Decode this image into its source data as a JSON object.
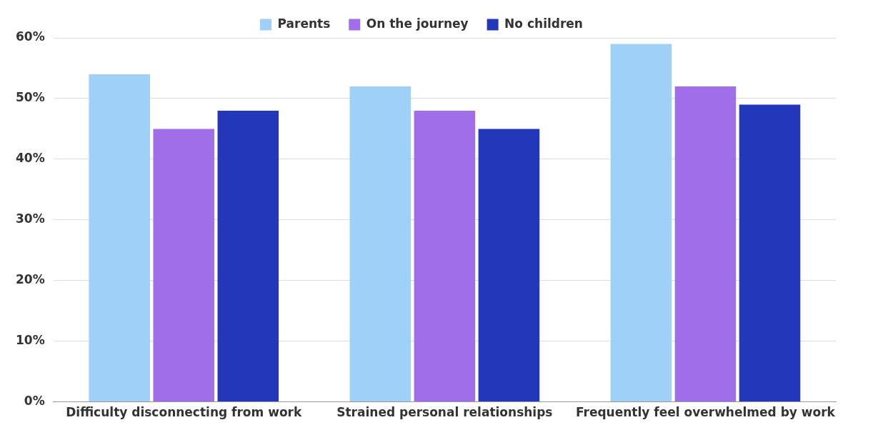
{
  "chart_data": {
    "type": "bar",
    "categories": [
      "Difficulty disconnecting from work",
      "Strained personal relationships",
      "Frequently feel overwhelmed by work"
    ],
    "series": [
      {
        "name": "Parents",
        "color": "#9fd0f7",
        "values": [
          54,
          52,
          59
        ]
      },
      {
        "name": "On the journey",
        "color": "#a06ee8",
        "values": [
          45,
          48,
          52
        ]
      },
      {
        "name": "No children",
        "color": "#2337bb",
        "values": [
          48,
          45,
          49
        ]
      }
    ],
    "ylim": [
      0,
      60
    ],
    "yticks": [
      {
        "value": 0,
        "label": "0%"
      },
      {
        "value": 10,
        "label": "10%"
      },
      {
        "value": 20,
        "label": "20%"
      },
      {
        "value": 30,
        "label": "30%"
      },
      {
        "value": 40,
        "label": "40%"
      },
      {
        "value": 50,
        "label": "50%"
      },
      {
        "value": 60,
        "label": "60%"
      }
    ],
    "grid": "y",
    "legend": "top"
  }
}
